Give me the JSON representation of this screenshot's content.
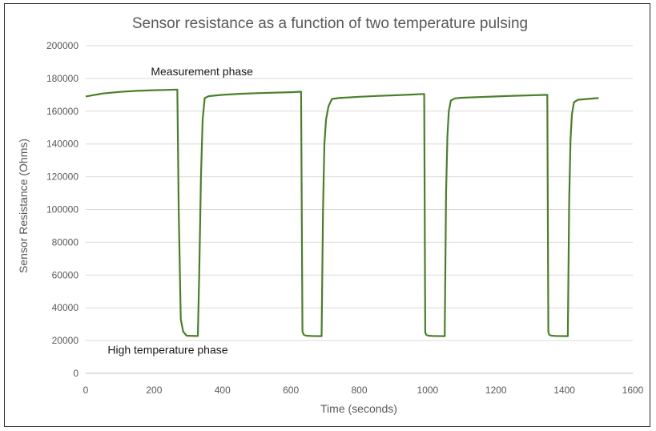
{
  "chart_data": {
    "type": "line",
    "title": "Sensor resistance as a function of two temperature pulsing",
    "xlabel": "Time (seconds)",
    "ylabel": "Sensor Resistance (Ohms)",
    "xlim": [
      0,
      1600
    ],
    "ylim": [
      0,
      200000
    ],
    "x_ticks": [
      0,
      200,
      400,
      600,
      800,
      1000,
      1200,
      1400,
      1600
    ],
    "y_ticks": [
      0,
      20000,
      40000,
      60000,
      80000,
      100000,
      120000,
      140000,
      160000,
      180000,
      200000
    ],
    "grid": "horizontal",
    "series_color": "#4a7f2a",
    "annotations": [
      {
        "text": "Measurement phase",
        "x": 340,
        "y": 182000
      },
      {
        "text": "High temperature phase",
        "x": 240,
        "y": 12000
      }
    ],
    "series": [
      {
        "x": [
          0,
          50,
          100,
          150,
          200,
          240,
          268,
          272,
          278,
          285,
          295,
          320,
          328,
          332,
          337,
          342,
          348,
          360,
          400,
          450,
          500,
          550,
          600,
          630,
          634,
          638,
          645,
          660,
          690,
          694,
          698,
          703,
          710,
          720,
          740,
          800,
          850,
          900,
          950,
          990,
          993,
          996,
          1002,
          1015,
          1050,
          1054,
          1058,
          1062,
          1068,
          1080,
          1100,
          1150,
          1200,
          1250,
          1300,
          1350,
          1353,
          1356,
          1362,
          1375,
          1410,
          1414,
          1418,
          1422,
          1428,
          1440,
          1500
        ],
        "y": [
          169000,
          170800,
          171800,
          172400,
          172800,
          173000,
          173200,
          100000,
          33000,
          25500,
          23000,
          22800,
          22800,
          60000,
          120000,
          155000,
          168000,
          169200,
          170000,
          170600,
          171000,
          171300,
          171600,
          171900,
          25500,
          23500,
          23000,
          22800,
          22700,
          100000,
          140000,
          155000,
          163000,
          167500,
          168000,
          168800,
          169300,
          169700,
          170100,
          170500,
          25000,
          23500,
          23000,
          22800,
          22700,
          110000,
          145000,
          160000,
          166500,
          167800,
          168200,
          168600,
          169000,
          169400,
          169700,
          170000,
          25000,
          23500,
          23000,
          22800,
          22700,
          105000,
          143000,
          158000,
          165500,
          167000,
          168000
        ]
      }
    ]
  }
}
